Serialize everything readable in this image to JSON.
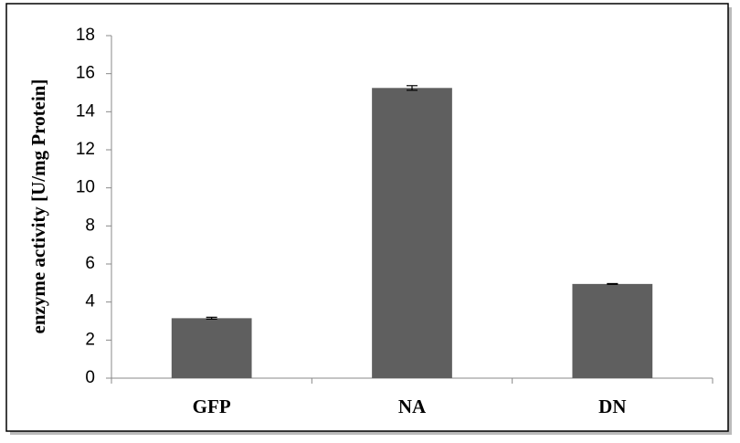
{
  "chart_data": {
    "type": "bar",
    "y_label": "enzyme activity [U/mg Protein]",
    "categories": [
      "GFP",
      "NA",
      "DN"
    ],
    "values": [
      3.15,
      15.25,
      4.95
    ],
    "errors": [
      0.05,
      0.12,
      0.02
    ],
    "color": "#5f5f5f",
    "ylim": [
      0,
      18
    ],
    "yticks": [
      0,
      2,
      4,
      6,
      8,
      10,
      12,
      14,
      16,
      18
    ],
    "grid": false
  }
}
